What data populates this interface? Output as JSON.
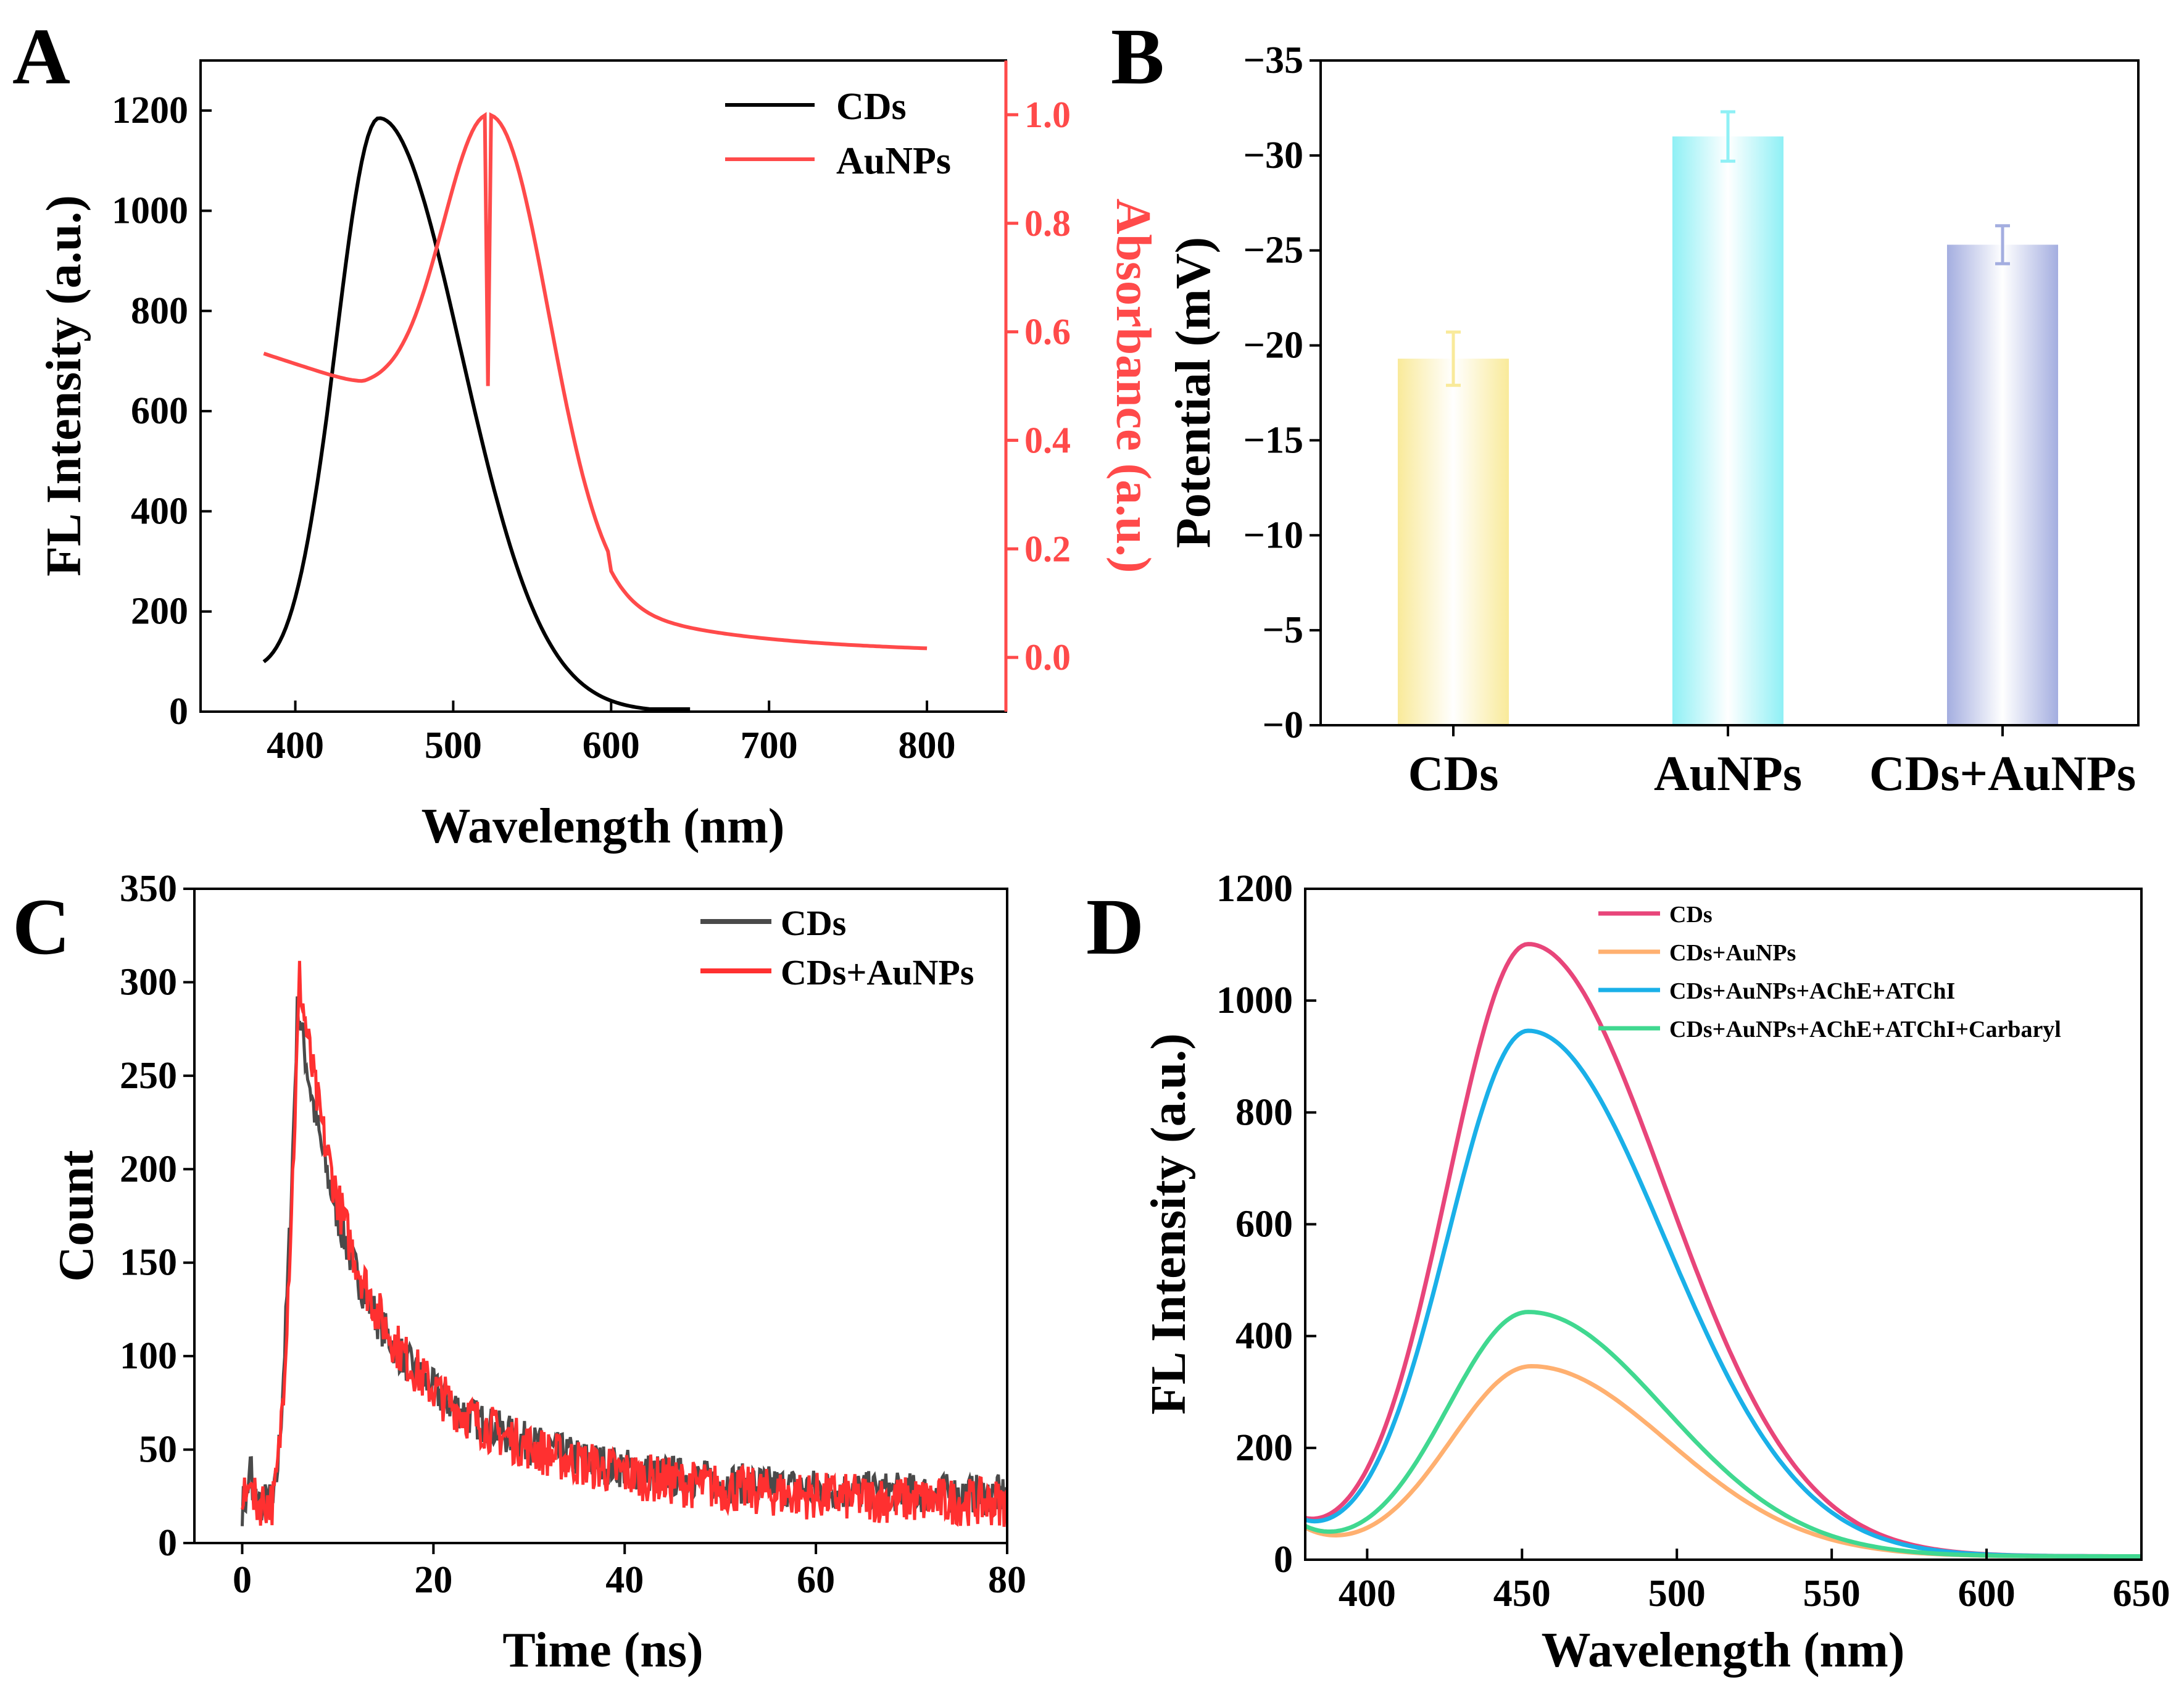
{
  "figure": {
    "description_labels": [
      "A",
      "B",
      "C",
      "D"
    ]
  },
  "chart_data": [
    {
      "panel": "A",
      "type": "line",
      "xlabel": "Wavelength (nm)",
      "ylabel": "FL Intensity (a.u.)",
      "y2label": "Absorbance (a.u.)",
      "xlim": [
        340,
        850
      ],
      "ylim": [
        0,
        1300
      ],
      "y2lim": [
        -0.1,
        1.1
      ],
      "xticks": [
        "400",
        "500",
        "600",
        "700",
        "800"
      ],
      "yticks": [
        "0",
        "200",
        "400",
        "600",
        "800",
        "1000",
        "1200"
      ],
      "y2ticks": [
        "0.0",
        "0.2",
        "0.4",
        "0.6",
        "0.8",
        "1.0"
      ],
      "legend_position": "top-right",
      "series": [
        {
          "name": "CDs",
          "axis": "left",
          "color": "#000000",
          "peak_x": 453,
          "peak_y": 1185,
          "range": [
            380,
            650
          ]
        },
        {
          "name": "AuNPs",
          "axis": "right",
          "color": "#ff4a4a",
          "peak_x": 522,
          "peak_y": 1.0,
          "start_y": 0.56,
          "min_x": 443,
          "min_y": 0.5,
          "end_y": 0.005,
          "range": [
            380,
            800
          ]
        }
      ]
    },
    {
      "panel": "B",
      "type": "bar",
      "ylabel": "Potential (mV)",
      "categories": [
        "CDs",
        "AuNPs",
        "CDs+AuNPs"
      ],
      "values": [
        -19.3,
        -31.0,
        -25.3
      ],
      "errors": [
        1.4,
        1.3,
        1.0
      ],
      "colors": [
        "#f9ea9a",
        "#8ff0f5",
        "#a4aee0"
      ],
      "ylim": [
        0,
        -35
      ],
      "yticks": [
        "−0",
        "−5",
        "−10",
        "−15",
        "−20",
        "−25",
        "−30",
        "−35"
      ]
    },
    {
      "panel": "C",
      "type": "line",
      "xlabel": "Time (ns)",
      "ylabel": "Count",
      "xlim": [
        -5,
        80
      ],
      "ylim": [
        0,
        350
      ],
      "xticks": [
        "0",
        "20",
        "40",
        "60",
        "80"
      ],
      "yticks": [
        "0",
        "50",
        "100",
        "150",
        "200",
        "250",
        "300",
        "350"
      ],
      "legend_position": "top-right",
      "series": [
        {
          "name": "CDs",
          "color": "#4a4a4a",
          "peak_x": 5.8,
          "peak_y": 290,
          "baseline": 18,
          "tail_end": 24
        },
        {
          "name": "CDs+AuNPs",
          "color": "#ff3030",
          "peak_x": 6.0,
          "peak_y": 302,
          "baseline": 18,
          "tail_end": 20
        }
      ]
    },
    {
      "panel": "D",
      "type": "line",
      "xlabel": "Wavelength (nm)",
      "ylabel": "FL Intensity (a.u.)",
      "xlim": [
        380,
        650
      ],
      "ylim": [
        0,
        1200
      ],
      "xticks": [
        "400",
        "450",
        "500",
        "550",
        "600",
        "650"
      ],
      "yticks": [
        "0",
        "200",
        "400",
        "600",
        "800",
        "1000",
        "1200"
      ],
      "legend_position": "top-right",
      "series": [
        {
          "name": "CDs",
          "color": "#e8457a",
          "peak_x": 452,
          "peak_y": 1095
        },
        {
          "name": "CDs+AuNPs",
          "color": "#ffb070",
          "peak_x": 453,
          "peak_y": 340
        },
        {
          "name": "CDs+AuNPs+AChE+ATChI",
          "color": "#1ab0e8",
          "peak_x": 452,
          "peak_y": 940
        },
        {
          "name": "CDs+AuNPs+AChE+ATChI+Carbaryl",
          "color": "#40d890",
          "peak_x": 452,
          "peak_y": 437
        }
      ]
    }
  ]
}
